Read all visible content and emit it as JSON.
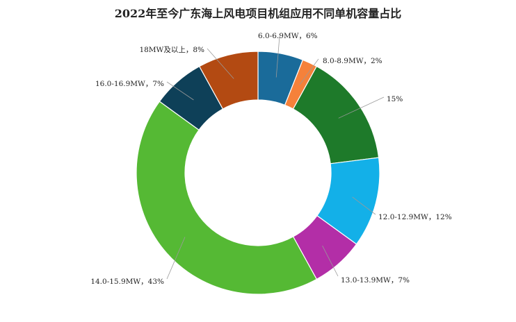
{
  "chart_data": {
    "type": "pie",
    "variant": "donut",
    "title": "2022年至今广东海上风电项目机组应用不同单机容量占比",
    "legend": "none",
    "slices": [
      {
        "name": "6.0-6.9MW",
        "value": 6,
        "label": "6.0-6.9MW，6%",
        "color": "#1a6b9a"
      },
      {
        "name": "8.0-8.9MW",
        "value": 2,
        "label": "8.0-8.9MW，2%",
        "color": "#f5813a"
      },
      {
        "name": "",
        "value": 15,
        "label": "15%",
        "color": "#1e7a2a"
      },
      {
        "name": "12.0-12.9MW",
        "value": 12,
        "label": "12.0-12.9MW，12%",
        "color": "#13b0e8"
      },
      {
        "name": "13.0-13.9MW",
        "value": 7,
        "label": "13.0-13.9MW，7%",
        "color": "#b32ea7"
      },
      {
        "name": "14.0-15.9MW",
        "value": 43,
        "label": "14.0-15.9MW，43%",
        "color": "#55b934"
      },
      {
        "name": "16.0-16.9MW",
        "value": 7,
        "label": "16.0-16.9MW，7%",
        "color": "#0e4058"
      },
      {
        "name": "18MW及以上",
        "value": 8,
        "label": "18MW及以上，8%",
        "color": "#b34a12"
      }
    ]
  }
}
